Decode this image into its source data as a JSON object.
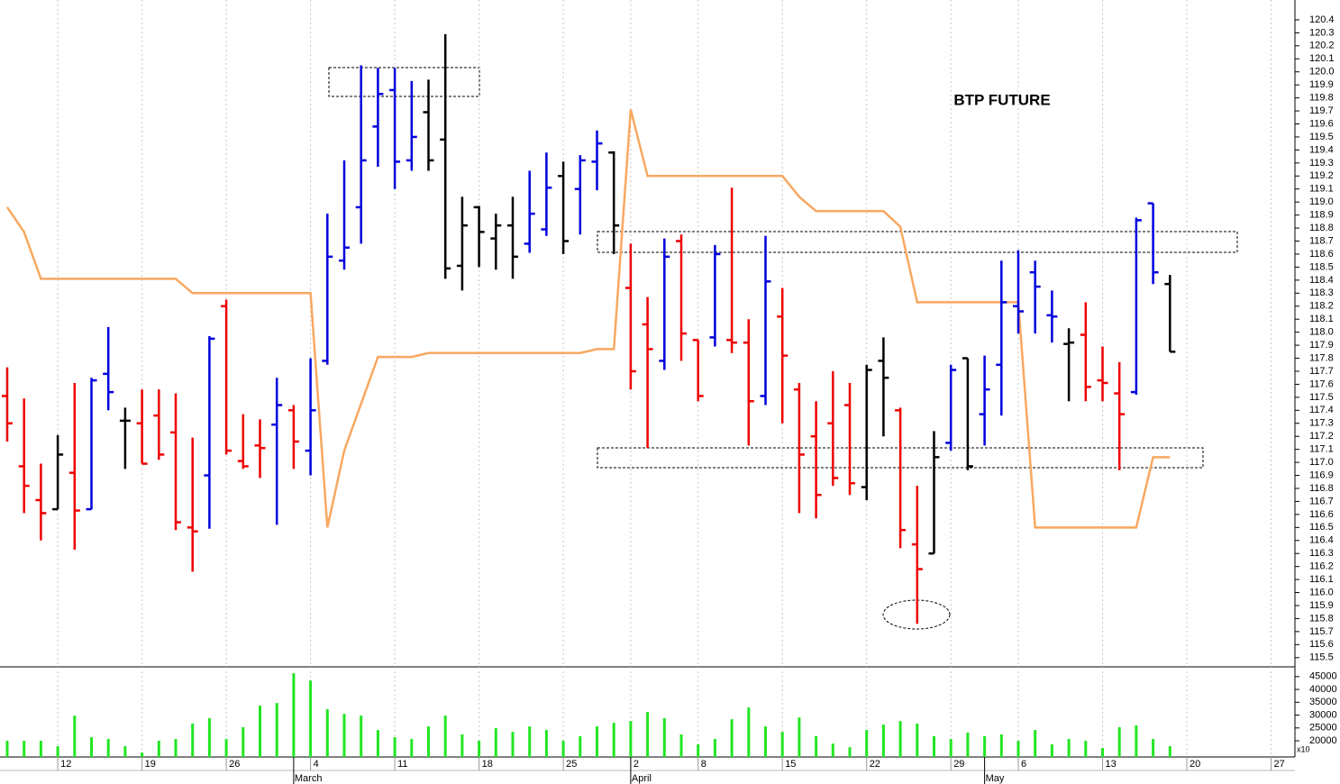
{
  "chart_data": [
    {
      "type": "ohlc",
      "title": "BTP FUTURE",
      "categories": [
        null,
        null,
        null,
        "12",
        null,
        null,
        null,
        null,
        "19",
        null,
        null,
        null,
        null,
        "26",
        null,
        null,
        null,
        null,
        "4",
        null,
        null,
        null,
        null,
        "11",
        null,
        null,
        null,
        null,
        "18",
        null,
        null,
        null,
        null,
        "25",
        null,
        null,
        null,
        "2",
        null,
        null,
        null,
        "8",
        null,
        null,
        null,
        null,
        "15",
        null,
        null,
        null,
        null,
        "22",
        null,
        null,
        null,
        null,
        "29",
        null,
        null,
        null,
        "6",
        null,
        null,
        null,
        null,
        "13",
        null,
        null,
        null,
        null,
        "20",
        null,
        null,
        null,
        null,
        "27",
        null
      ],
      "months": [
        null,
        null,
        null,
        null,
        null,
        null,
        null,
        null,
        null,
        null,
        null,
        null,
        null,
        null,
        null,
        null,
        null,
        "March",
        null,
        null,
        null,
        null,
        null,
        null,
        null,
        null,
        null,
        null,
        null,
        null,
        null,
        null,
        null,
        null,
        null,
        null,
        null,
        "April",
        null,
        null,
        null,
        null,
        null,
        null,
        null,
        null,
        null,
        null,
        null,
        null,
        null,
        null,
        null,
        null,
        null,
        null,
        null,
        null,
        "May",
        null,
        null,
        null,
        null,
        null,
        null,
        null,
        null,
        null,
        null,
        null,
        null,
        null,
        null,
        null,
        null,
        null,
        null
      ],
      "open": [
        117.51,
        116.97,
        116.71,
        116.64,
        116.92,
        116.64,
        117.68,
        117.32,
        117.3,
        117.36,
        117.23,
        116.5,
        116.9,
        118.2,
        117.01,
        117.13,
        117.29,
        117.4,
        117.09,
        117.78,
        118.55,
        118.96,
        119.58,
        119.86,
        119.32,
        119.69,
        119.48,
        118.51,
        118.96,
        118.72,
        118.82,
        118.68,
        118.79,
        119.2,
        119.1,
        119.31,
        119.38,
        118.34,
        118.06,
        117.78,
        118.7,
        117.94,
        117.96,
        117.94,
        117.92,
        117.51,
        118.12,
        117.56,
        117.2,
        117.3,
        117.44,
        116.81,
        117.78,
        117.4,
        116.37,
        116.3,
        117.15,
        117.8,
        117.37,
        117.75,
        118.2,
        118.46,
        118.13,
        117.91,
        117.98,
        117.63,
        117.53,
        117.54,
        118.99,
        118.37,
        null,
        null,
        null,
        null,
        null,
        null,
        null
      ],
      "high": [
        117.73,
        117.49,
        116.99,
        117.21,
        117.61,
        117.65,
        118.04,
        117.42,
        117.56,
        117.56,
        117.53,
        117.19,
        117.97,
        118.25,
        117.37,
        117.33,
        117.65,
        117.44,
        117.8,
        118.91,
        119.32,
        120.05,
        120.03,
        120.03,
        119.93,
        119.94,
        120.29,
        119.04,
        118.97,
        118.91,
        119.04,
        119.24,
        119.38,
        119.31,
        119.36,
        119.55,
        119.39,
        118.68,
        118.27,
        118.72,
        118.75,
        117.94,
        118.67,
        119.11,
        118.1,
        118.74,
        118.34,
        117.61,
        117.47,
        117.7,
        117.61,
        117.75,
        117.96,
        117.42,
        116.82,
        117.24,
        117.75,
        117.8,
        117.82,
        118.55,
        118.63,
        118.55,
        118.32,
        118.03,
        118.23,
        117.89,
        117.77,
        118.88,
        118.99,
        118.44,
        null,
        null,
        null,
        null,
        null,
        null,
        null
      ],
      "low": [
        117.16,
        116.61,
        116.4,
        116.64,
        116.33,
        116.64,
        117.4,
        116.95,
        116.99,
        117.02,
        116.48,
        116.16,
        116.49,
        117.06,
        116.95,
        116.88,
        116.52,
        116.95,
        116.9,
        117.75,
        118.48,
        118.68,
        119.27,
        119.1,
        119.24,
        119.24,
        118.41,
        118.32,
        118.5,
        118.48,
        118.41,
        118.61,
        118.74,
        118.6,
        118.75,
        119.09,
        118.6,
        117.56,
        117.11,
        117.71,
        117.78,
        117.47,
        117.89,
        117.84,
        117.13,
        117.44,
        117.3,
        116.61,
        116.57,
        116.82,
        116.75,
        116.71,
        117.2,
        116.34,
        115.76,
        116.3,
        117.09,
        116.94,
        117.13,
        117.36,
        117.99,
        117.99,
        117.92,
        117.47,
        117.47,
        117.47,
        116.94,
        117.52,
        118.37,
        117.85,
        null,
        null,
        null,
        null,
        null,
        null,
        null
      ],
      "close": [
        117.3,
        116.82,
        116.61,
        117.06,
        116.63,
        117.63,
        117.54,
        117.32,
        116.99,
        117.06,
        116.54,
        116.47,
        117.95,
        117.09,
        116.97,
        117.11,
        117.44,
        117.16,
        117.4,
        118.58,
        118.65,
        119.32,
        119.83,
        119.31,
        119.5,
        119.32,
        118.49,
        118.82,
        118.77,
        118.82,
        118.58,
        118.91,
        119.11,
        118.7,
        119.32,
        119.45,
        118.82,
        117.7,
        117.87,
        118.58,
        117.99,
        117.51,
        118.6,
        117.92,
        117.47,
        118.39,
        117.82,
        117.06,
        116.75,
        116.88,
        116.84,
        117.71,
        117.65,
        116.48,
        116.18,
        117.04,
        117.71,
        116.97,
        117.56,
        118.23,
        118.16,
        118.35,
        118.12,
        117.92,
        117.58,
        117.61,
        117.37,
        118.86,
        118.46,
        117.85,
        null,
        null,
        null,
        null,
        null,
        null,
        null
      ],
      "colors": [
        "#ee0000",
        "#ee0000",
        "#ee0000",
        "#000000",
        "#ee0000",
        "#0000dd",
        "#0000dd",
        "#000000",
        "#ee0000",
        "#ee0000",
        "#ee0000",
        "#ee0000",
        "#0000dd",
        "#ee0000",
        "#ee0000",
        "#ee0000",
        "#0000dd",
        "#ee0000",
        "#0000dd",
        "#0000dd",
        "#0000dd",
        "#0000dd",
        "#0000dd",
        "#0000dd",
        "#0000dd",
        "#000000",
        "#000000",
        "#000000",
        "#000000",
        "#000000",
        "#000000",
        "#0000dd",
        "#0000dd",
        "#000000",
        "#0000dd",
        "#0000dd",
        "#000000",
        "#ee0000",
        "#ee0000",
        "#0000dd",
        "#ee0000",
        "#ee0000",
        "#0000dd",
        "#ee0000",
        "#ee0000",
        "#0000dd",
        "#ee0000",
        "#ee0000",
        "#ee0000",
        "#ee0000",
        "#ee0000",
        "#000000",
        "#000000",
        "#ee0000",
        "#ee0000",
        "#000000",
        "#0000dd",
        "#000000",
        "#0000dd",
        "#0000dd",
        "#0000dd",
        "#0000dd",
        "#0000dd",
        "#000000",
        "#ee0000",
        "#ee0000",
        "#ee0000",
        "#0000dd",
        "#0000dd",
        "#000000",
        null,
        null,
        null,
        null,
        null,
        null,
        null
      ],
      "overlay": {
        "type": "line",
        "color": "#f8a860",
        "values": [
          118.96,
          118.77,
          118.41,
          118.41,
          118.41,
          118.41,
          118.41,
          118.41,
          118.41,
          118.41,
          118.41,
          118.3,
          118.3,
          118.3,
          118.3,
          118.3,
          118.3,
          118.3,
          118.3,
          116.5,
          117.09,
          117.45,
          117.81,
          117.81,
          117.81,
          117.84,
          117.84,
          117.84,
          117.84,
          117.84,
          117.84,
          117.84,
          117.84,
          117.84,
          117.84,
          117.87,
          117.87,
          119.71,
          119.2,
          119.2,
          119.2,
          119.2,
          119.2,
          119.2,
          119.2,
          119.2,
          119.2,
          119.04,
          118.93,
          118.93,
          118.93,
          118.93,
          118.93,
          118.81,
          118.23,
          118.23,
          118.23,
          118.23,
          118.23,
          118.23,
          118.23,
          116.5,
          116.5,
          116.5,
          116.5,
          116.5,
          116.5,
          116.5,
          117.04,
          117.04,
          null,
          null,
          null,
          null,
          null,
          null,
          null
        ]
      },
      "ylim": [
        115.45,
        120.5
      ],
      "yticks": [
        115.5,
        115.6,
        115.7,
        115.8,
        115.9,
        {
          "value": 116,
          "label": "116.0"
        },
        116.1,
        116.2,
        116.3,
        116.4,
        116.5,
        116.6,
        116.7,
        116.8,
        116.9,
        {
          "value": 117,
          "label": "117.0"
        },
        117.1,
        117.2,
        117.3,
        117.4,
        117.5,
        117.6,
        117.7,
        117.8,
        117.9,
        {
          "value": 118,
          "label": "118.0"
        },
        118.1,
        118.2,
        118.3,
        118.4,
        118.5,
        118.6,
        118.7,
        118.8,
        118.9,
        {
          "value": 119,
          "label": "119.0"
        },
        119.1,
        119.2,
        119.3,
        119.4,
        119.5,
        119.6,
        119.7,
        119.8,
        119.9,
        {
          "value": 120,
          "label": "120.0"
        },
        120.1,
        120.2,
        120.3,
        120.4
      ],
      "grid": true
    },
    {
      "type": "bar",
      "color": "#22e622",
      "note": "x10",
      "values": [
        20000,
        20000,
        20000,
        17900,
        29800,
        21400,
        20700,
        17900,
        15400,
        20000,
        20700,
        26700,
        28800,
        20700,
        25300,
        33700,
        34700,
        46300,
        43500,
        32300,
        30500,
        29800,
        24200,
        21400,
        20700,
        25600,
        29800,
        22500,
        20000,
        24900,
        23500,
        25600,
        24200,
        20000,
        21800,
        25600,
        27000,
        27700,
        31200,
        28800,
        22500,
        18600,
        20700,
        28400,
        33000,
        25600,
        23500,
        29100,
        21800,
        18900,
        17500,
        24200,
        26300,
        27700,
        26700,
        21800,
        20700,
        23200,
        21800,
        22500,
        20000,
        24200,
        18600,
        20700,
        20000,
        17200,
        25300,
        26000,
        20700,
        17900,
        null,
        null,
        null,
        null,
        null,
        null,
        null
      ],
      "ylim": [
        13700,
        48800
      ],
      "yticks": [
        20000,
        25000,
        30000,
        35000,
        40000,
        45000
      ]
    }
  ]
}
